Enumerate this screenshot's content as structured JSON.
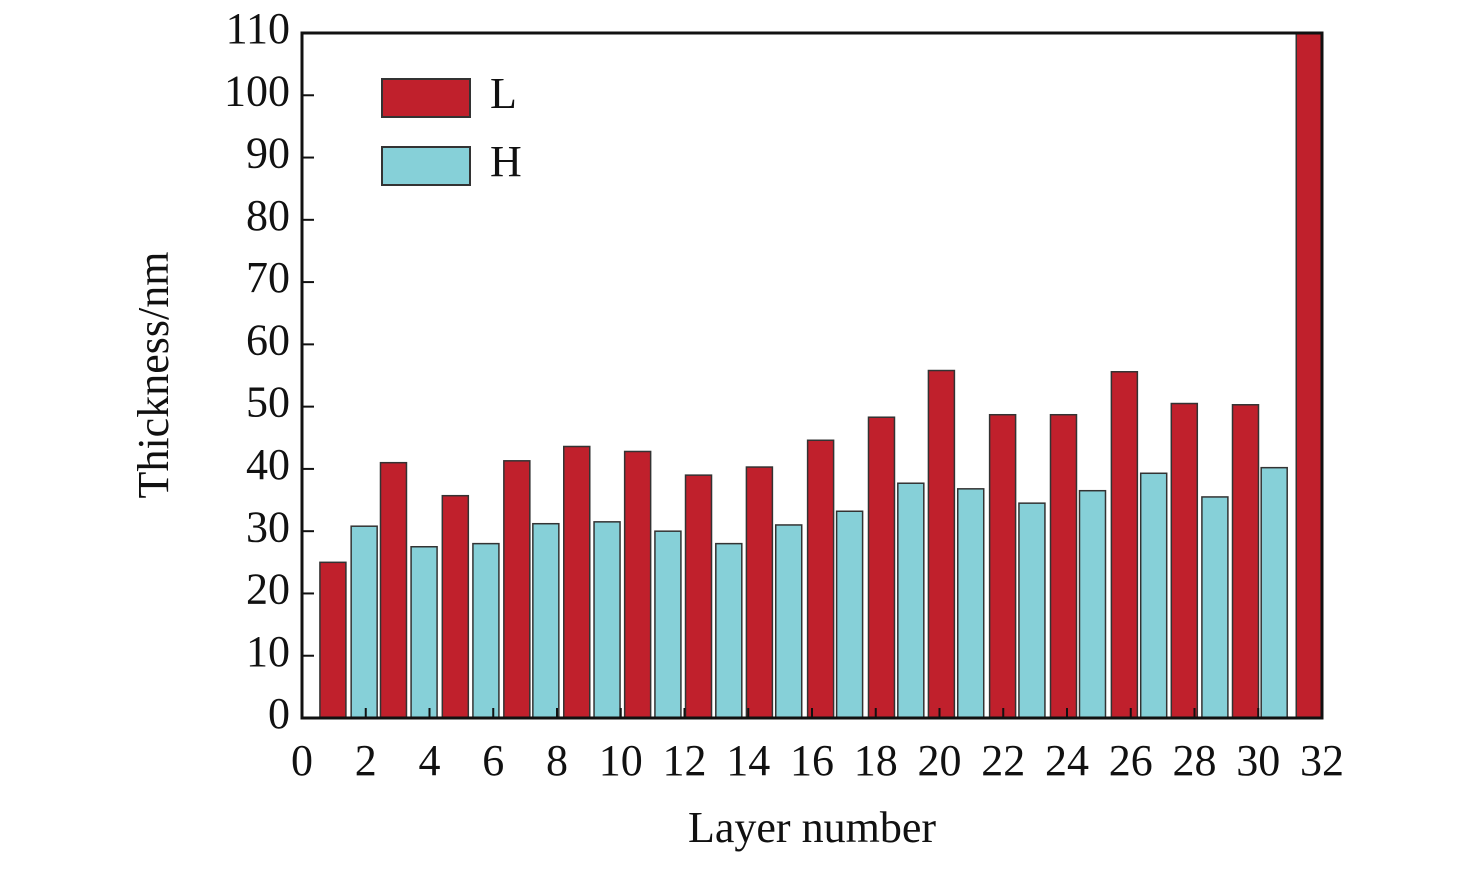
{
  "chart_data": {
    "type": "bar",
    "x_label": "Layer number",
    "y_label": "Thickness/nm",
    "xlim": [
      0,
      32
    ],
    "xticks": [
      0,
      2,
      4,
      6,
      8,
      10,
      12,
      14,
      16,
      18,
      20,
      22,
      24,
      26,
      28,
      30,
      32
    ],
    "ylim": [
      0,
      110
    ],
    "yticks": [
      0,
      10,
      20,
      30,
      40,
      50,
      60,
      70,
      80,
      90,
      100,
      110
    ],
    "legend": "upper left",
    "series": [
      {
        "name": "L",
        "color": "#c0202c",
        "x": [
          0.97,
          2.87,
          4.81,
          6.74,
          8.62,
          10.53,
          12.44,
          14.35,
          16.27,
          18.18,
          20.06,
          21.98,
          23.89,
          25.8,
          27.68,
          29.6,
          31.6
        ],
        "values": [
          25,
          41,
          35.7,
          41.3,
          43.6,
          42.8,
          39,
          40.3,
          44.6,
          48.3,
          55.8,
          48.7,
          48.7,
          55.6,
          50.5,
          50.3,
          110
        ]
      },
      {
        "name": "H",
        "color": "#86d0d8",
        "x": [
          1.95,
          3.83,
          5.77,
          7.65,
          9.57,
          11.48,
          13.39,
          15.27,
          17.18,
          19.1,
          20.98,
          22.9,
          24.8,
          26.72,
          28.64,
          30.5
        ],
        "values": [
          30.8,
          27.5,
          28,
          31.2,
          31.5,
          30,
          28,
          31,
          33.2,
          37.7,
          36.8,
          34.5,
          36.5,
          39.3,
          35.5,
          40.2
        ]
      }
    ]
  }
}
